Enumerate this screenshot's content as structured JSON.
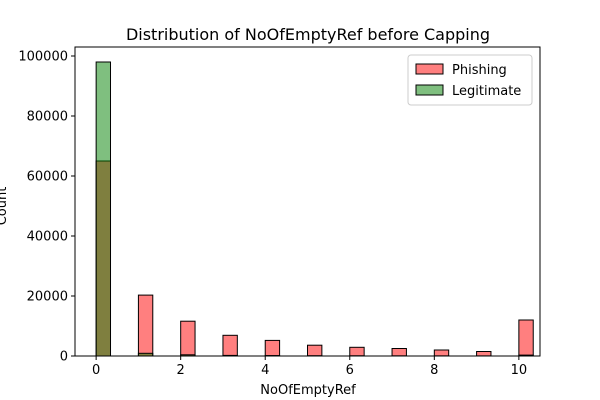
{
  "chart_data": {
    "type": "bar",
    "subtype": "histogram-overlay",
    "title": "Distribution of NoOfEmptyRef before Capping",
    "xlabel": "NoOfEmptyRef",
    "ylabel": "Count",
    "xlim": [
      -0.5,
      10.5
    ],
    "ylim": [
      0,
      103000
    ],
    "xticks": [
      0,
      2,
      4,
      6,
      8,
      10
    ],
    "yticks": [
      0,
      20000,
      40000,
      60000,
      80000,
      100000
    ],
    "bin_width": 0.34,
    "legend_position": "top-right",
    "series": [
      {
        "name": "Phishing",
        "color": "#ff0000",
        "opacity": 0.5,
        "x": [
          0,
          1,
          2,
          3,
          4,
          5,
          6,
          7,
          8,
          9,
          10
        ],
        "values": [
          65000,
          20300,
          11600,
          6900,
          5200,
          3600,
          2900,
          2500,
          2000,
          1500,
          12000
        ]
      },
      {
        "name": "Legitimate",
        "color": "#008000",
        "opacity": 0.5,
        "x": [
          0,
          1,
          2,
          3,
          4,
          5,
          6,
          7,
          8,
          9,
          10
        ],
        "values": [
          98000,
          900,
          400,
          200,
          150,
          100,
          80,
          60,
          50,
          40,
          300
        ]
      }
    ]
  }
}
